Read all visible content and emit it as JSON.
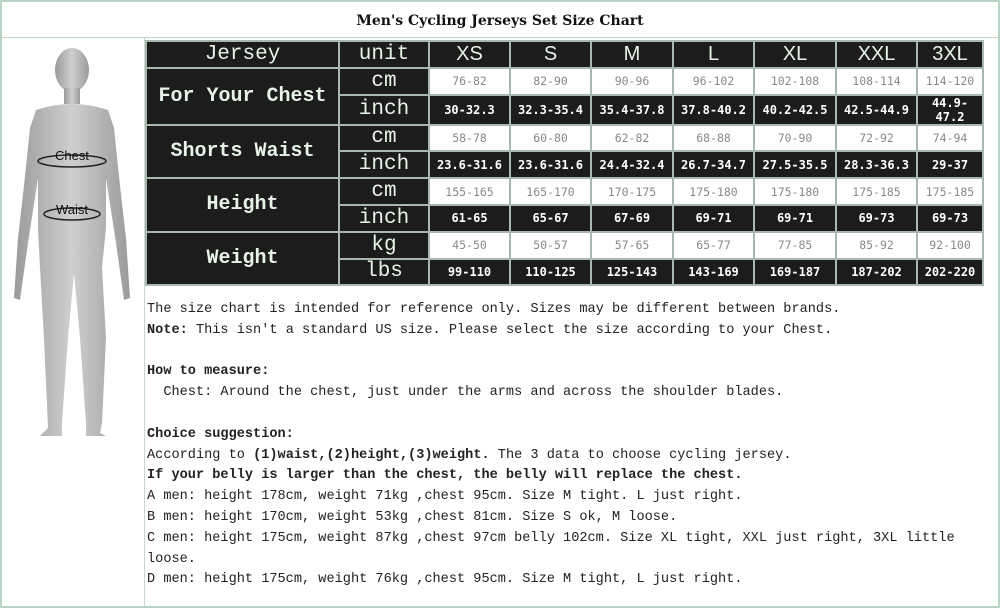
{
  "title": "Men's Cycling Jerseys Set Size Chart",
  "figure": {
    "chest_label": "Chest",
    "waist_label": "Waist"
  },
  "table": {
    "headers": [
      "Jersey",
      "unit",
      "XS",
      "S",
      "M",
      "L",
      "XL",
      "XXL",
      "3XL"
    ],
    "groups": [
      {
        "label": "For Your Chest",
        "rows": [
          {
            "unit": "cm",
            "values": [
              "76-82",
              "82-90",
              "90-96",
              "96-102",
              "102-108",
              "108-114",
              "114-120"
            ]
          },
          {
            "unit": "inch",
            "values": [
              "30-32.3",
              "32.3-35.4",
              "35.4-37.8",
              "37.8-40.2",
              "40.2-42.5",
              "42.5-44.9",
              "44.9-47.2"
            ]
          }
        ]
      },
      {
        "label": "Shorts Waist",
        "rows": [
          {
            "unit": "cm",
            "values": [
              "58-78",
              "60-80",
              "62-82",
              "68-88",
              "70-90",
              "72-92",
              "74-94"
            ]
          },
          {
            "unit": "inch",
            "values": [
              "23.6-31.6",
              "23.6-31.6",
              "24.4-32.4",
              "26.7-34.7",
              "27.5-35.5",
              "28.3-36.3",
              "29-37"
            ]
          }
        ]
      },
      {
        "label": "Height",
        "rows": [
          {
            "unit": "cm",
            "values": [
              "155-165",
              "165-170",
              "170-175",
              "175-180",
              "175-180",
              "175-185",
              "175-185"
            ]
          },
          {
            "unit": "inch",
            "values": [
              "61-65",
              "65-67",
              "67-69",
              "69-71",
              "69-71",
              "69-73",
              "69-73"
            ]
          }
        ]
      },
      {
        "label": "Weight",
        "rows": [
          {
            "unit": "kg",
            "values": [
              "45-50",
              "50-57",
              "57-65",
              "65-77",
              "77-85",
              "85-92",
              "92-100"
            ]
          },
          {
            "unit": "lbs",
            "values": [
              "99-110",
              "110-125",
              "125-143",
              "143-169",
              "169-187",
              "187-202",
              "202-220"
            ]
          }
        ]
      }
    ]
  },
  "notes": {
    "line1": "The size chart is intended for reference only. Sizes may be different between brands.",
    "note_label": "Note:",
    "note_text": " This isn't a standard US size. Please select the size according to your Chest.",
    "how_title": "How to measure:",
    "how_chest": "  Chest: Around the chest, just under the arms and across the shoulder blades.",
    "choice_title": "Choice suggestion:",
    "choice_prefix": "According to ",
    "choice_bold": "(1)waist,(2)height,(3)weight.",
    "choice_suffix": " The 3 data to choose cycling jersey.",
    "belly": "If your belly is larger than the chest, the belly will replace the chest.",
    "a": "A men: height 178cm, weight 71kg ,chest 95cm. Size M tight. L just right.",
    "b": "B men: height 170cm, weight 53kg ,chest 81cm. Size S ok, M loose.",
    "c": "C men: height 175cm, weight 87kg ,chest 97cm belly 102cm. Size XL tight, XXL just right, 3XL little\nloose.",
    "d": "D men: height 175cm, weight 76kg ,chest 95cm. Size M tight, L just right."
  }
}
